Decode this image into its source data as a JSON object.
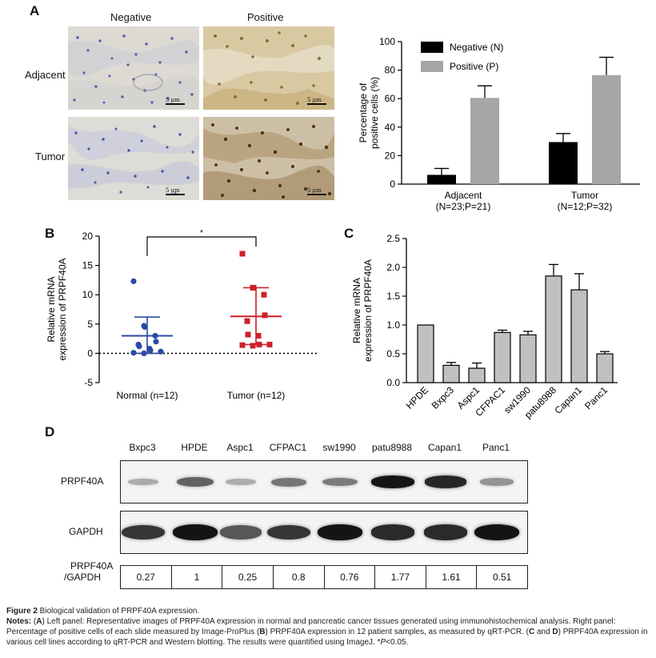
{
  "panelA": {
    "letter": "A",
    "col_neg": "Negative",
    "col_pos": "Positive",
    "row_adj": "Adjacent",
    "row_tum": "Tumor",
    "scale_label": "5 μm",
    "colors": {
      "negative": "#000000",
      "positive": "#a6a6a6"
    }
  },
  "panelB": {
    "letter": "B",
    "ylabel1": "Relative mRNA",
    "ylabel2": "expression of PRPF40A",
    "sig": "*"
  },
  "panelC": {
    "letter": "C",
    "ylabel1": "Relative mRNA",
    "ylabel2": "expression of PRPF40A"
  },
  "panelD": {
    "letter": "D",
    "lanes": [
      "Bxpc3",
      "HPDE",
      "Aspc1",
      "CFPAC1",
      "sw1990",
      "patu8988",
      "Capan1",
      "Panc1"
    ],
    "row1": "PRPF40A",
    "row2": "GAPDH",
    "ratio_label1": "PRPF40A",
    "ratio_label2": "/GAPDH",
    "ratios": [
      "0.27",
      "1",
      "0.25",
      "0.8",
      "0.76",
      "1.77",
      "1.61",
      "0.51"
    ]
  },
  "chart_data": [
    {
      "type": "bar",
      "categories": [
        "Adjacent (N=23;P=21)",
        "Tumor (N=12;P=32)"
      ],
      "category_line1": [
        "Adjacent",
        "Tumor"
      ],
      "category_line2": [
        "(N=23;P=21)",
        "(N=12;P=32)"
      ],
      "series": [
        {
          "name": "Negative (N)",
          "values": [
            6.5,
            29.5
          ],
          "errors": [
            4.5,
            6
          ]
        },
        {
          "name": "Positive (P)",
          "values": [
            60.5,
            76.5
          ],
          "errors": [
            8.5,
            12.5
          ]
        }
      ],
      "ylabel": "Percentage of positive cells (%)",
      "ylabel_line1": "Percentage of",
      "ylabel_line2": "positive cells (%)",
      "ylim": [
        0,
        100
      ],
      "yticks": [
        "0",
        "20",
        "40",
        "60",
        "80",
        "100"
      ],
      "legend": "top-left"
    },
    {
      "type": "scatter",
      "categories": [
        "Normal (n=12)",
        "Tumor (n=12)"
      ],
      "series": [
        {
          "name": "Normal (n=12)",
          "color": "#2b4aa6",
          "values": [
            12.3,
            4.7,
            4.5,
            3.0,
            2.0,
            1.5,
            1.2,
            0.8,
            0.5,
            0.3,
            0.1,
            0.0
          ],
          "mean": 3.0,
          "sd_low": 0.0,
          "sd_high": 6.2
        },
        {
          "name": "Tumor (n=12)",
          "color": "#cc2127",
          "values": [
            17.0,
            11.2,
            11.2,
            10.0,
            6.5,
            5.5,
            3.2,
            3.0,
            1.5,
            1.5,
            1.4,
            1.3
          ],
          "mean": 6.3,
          "sd_low": 1.5,
          "sd_high": 11.2
        }
      ],
      "ylabel": "Relative mRNA expression of PRPF40A",
      "ylim": [
        -5,
        20
      ],
      "yticks": [
        "-5",
        "0",
        "5",
        "10",
        "15",
        "20"
      ],
      "annotation": "*"
    },
    {
      "type": "bar",
      "categories": [
        "HPDE",
        "Bxpc3",
        "Aspc1",
        "CFPAC1",
        "sw1990",
        "patu8988",
        "Capan1",
        "Panc1"
      ],
      "values": [
        1.0,
        0.3,
        0.25,
        0.87,
        0.83,
        1.85,
        1.61,
        0.5
      ],
      "errors": [
        0,
        0.05,
        0.09,
        0.04,
        0.06,
        0.2,
        0.28,
        0.04
      ],
      "ylabel": "Relative mRNA expression of PRPF40A",
      "ylim": [
        0,
        2.5
      ],
      "yticks": [
        "0.0",
        "0.5",
        "1.0",
        "1.5",
        "2.0",
        "2.5"
      ],
      "color": "#c0c0c0"
    }
  ],
  "caption": {
    "fig": "Figure 2",
    "title": " Biological validation of PRPF40A expression.",
    "notes_label": "Notes:",
    "a1": " (",
    "A": "A",
    "a2": ") Left panel: Representative images of PRPF40A expression in normal and pancreatic cancer tissues generated using immunohistochemical analysis. Right panel: Percentage of positive cells of each slide measured by Image-ProPlus (",
    "B": "B",
    "a3": ") PRPF40A expression in 12 patient samples, as measured by qRT-PCR. (",
    "C": "C",
    "a4": " and ",
    "D": "D",
    "a5": ") PRPF40A expression in various cell lines according to qRT-PCR and Western blotting. The results were quantified using ImageJ. *",
    "p": "P",
    "a6": "<0.05."
  }
}
